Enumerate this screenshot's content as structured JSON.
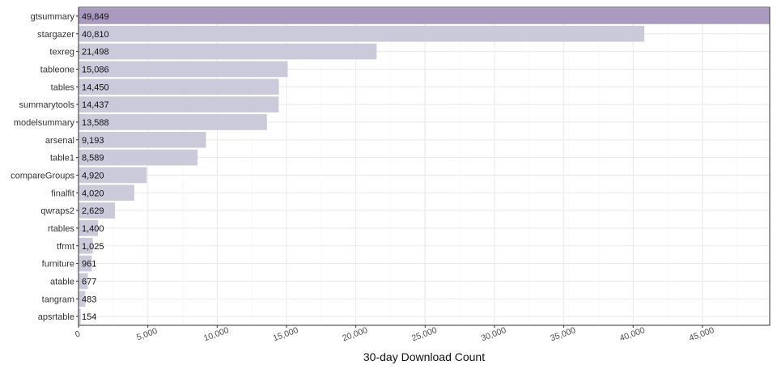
{
  "chart_data": {
    "type": "bar",
    "orientation": "horizontal",
    "xlabel": "30-day Download Count",
    "ylabel": "",
    "xlim": [
      0,
      49849
    ],
    "x_ticks": [
      0,
      5000,
      10000,
      15000,
      20000,
      25000,
      30000,
      35000,
      40000,
      45000
    ],
    "x_tick_labels": [
      "0",
      "5,000",
      "10,000",
      "15,000",
      "20,000",
      "25,000",
      "30,000",
      "35,000",
      "40,000",
      "45,000"
    ],
    "grid": true,
    "legend": "none",
    "categories": [
      "gtsummary",
      "stargazer",
      "texreg",
      "tableone",
      "tables",
      "summarytools",
      "modelsummary",
      "arsenal",
      "table1",
      "compareGroups",
      "finalfit",
      "qwraps2",
      "rtables",
      "tfrmt",
      "furniture",
      "atable",
      "tangram",
      "apsrtable"
    ],
    "values": [
      49849,
      40810,
      21498,
      15086,
      14450,
      14437,
      13588,
      9193,
      8589,
      4920,
      4020,
      2629,
      1400,
      1025,
      961,
      677,
      483,
      154
    ],
    "value_labels": [
      "49,849",
      "40,810",
      "21,498",
      "15,086",
      "14,450",
      "14,437",
      "13,588",
      "9,193",
      "8,589",
      "4,920",
      "4,020",
      "2,629",
      "1,400",
      "1,025",
      "961",
      "677",
      "483",
      "154"
    ],
    "highlight": "gtsummary",
    "colors": {
      "highlight_bar": "#ab9ac0",
      "bar": "#cbcada",
      "grid_major": "#ebebeb",
      "grid_minor": "#f4f4f4",
      "panel_border": "#333333",
      "axis_text": "#4d4d4d",
      "label_text": "#111111"
    }
  }
}
